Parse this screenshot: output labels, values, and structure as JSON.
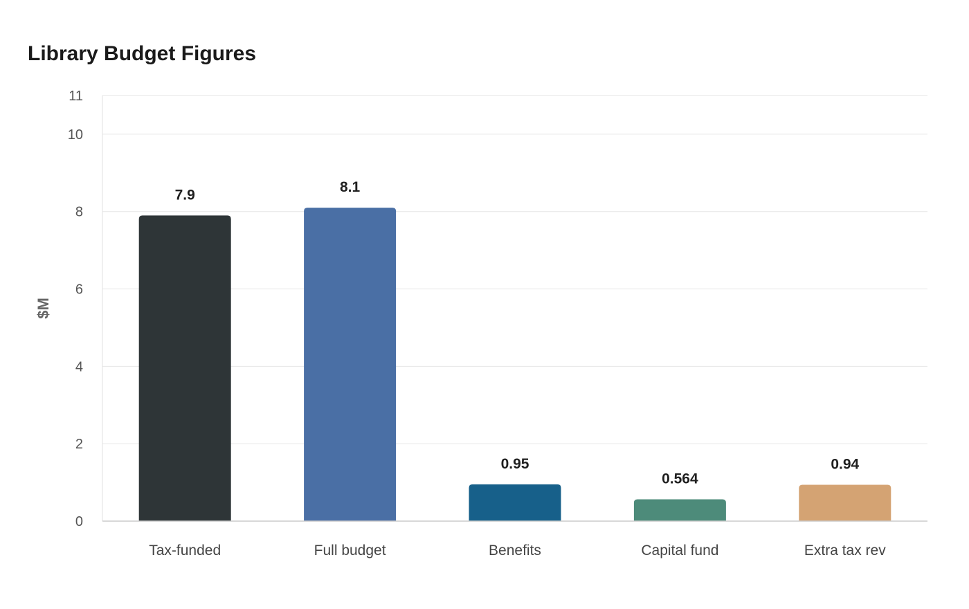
{
  "chart_data": {
    "type": "bar",
    "title": "Library Budget Figures",
    "xlabel": "",
    "ylabel": "$M",
    "ylim": [
      0,
      11
    ],
    "yticks": [
      0,
      2,
      4,
      6,
      8,
      10,
      11
    ],
    "grid": true,
    "legend": "none",
    "categories": [
      "Tax-funded",
      "Full budget",
      "Benefits",
      "Capital fund",
      "Extra tax rev"
    ],
    "values": [
      7.9,
      8.1,
      0.95,
      0.564,
      0.94
    ],
    "data_labels": [
      "7.9",
      "8.1",
      "0.95",
      "0.564",
      "0.94"
    ],
    "colors": [
      "#2e3537",
      "#4a6fa5",
      "#17608a",
      "#4d8b7a",
      "#d4a373"
    ]
  }
}
